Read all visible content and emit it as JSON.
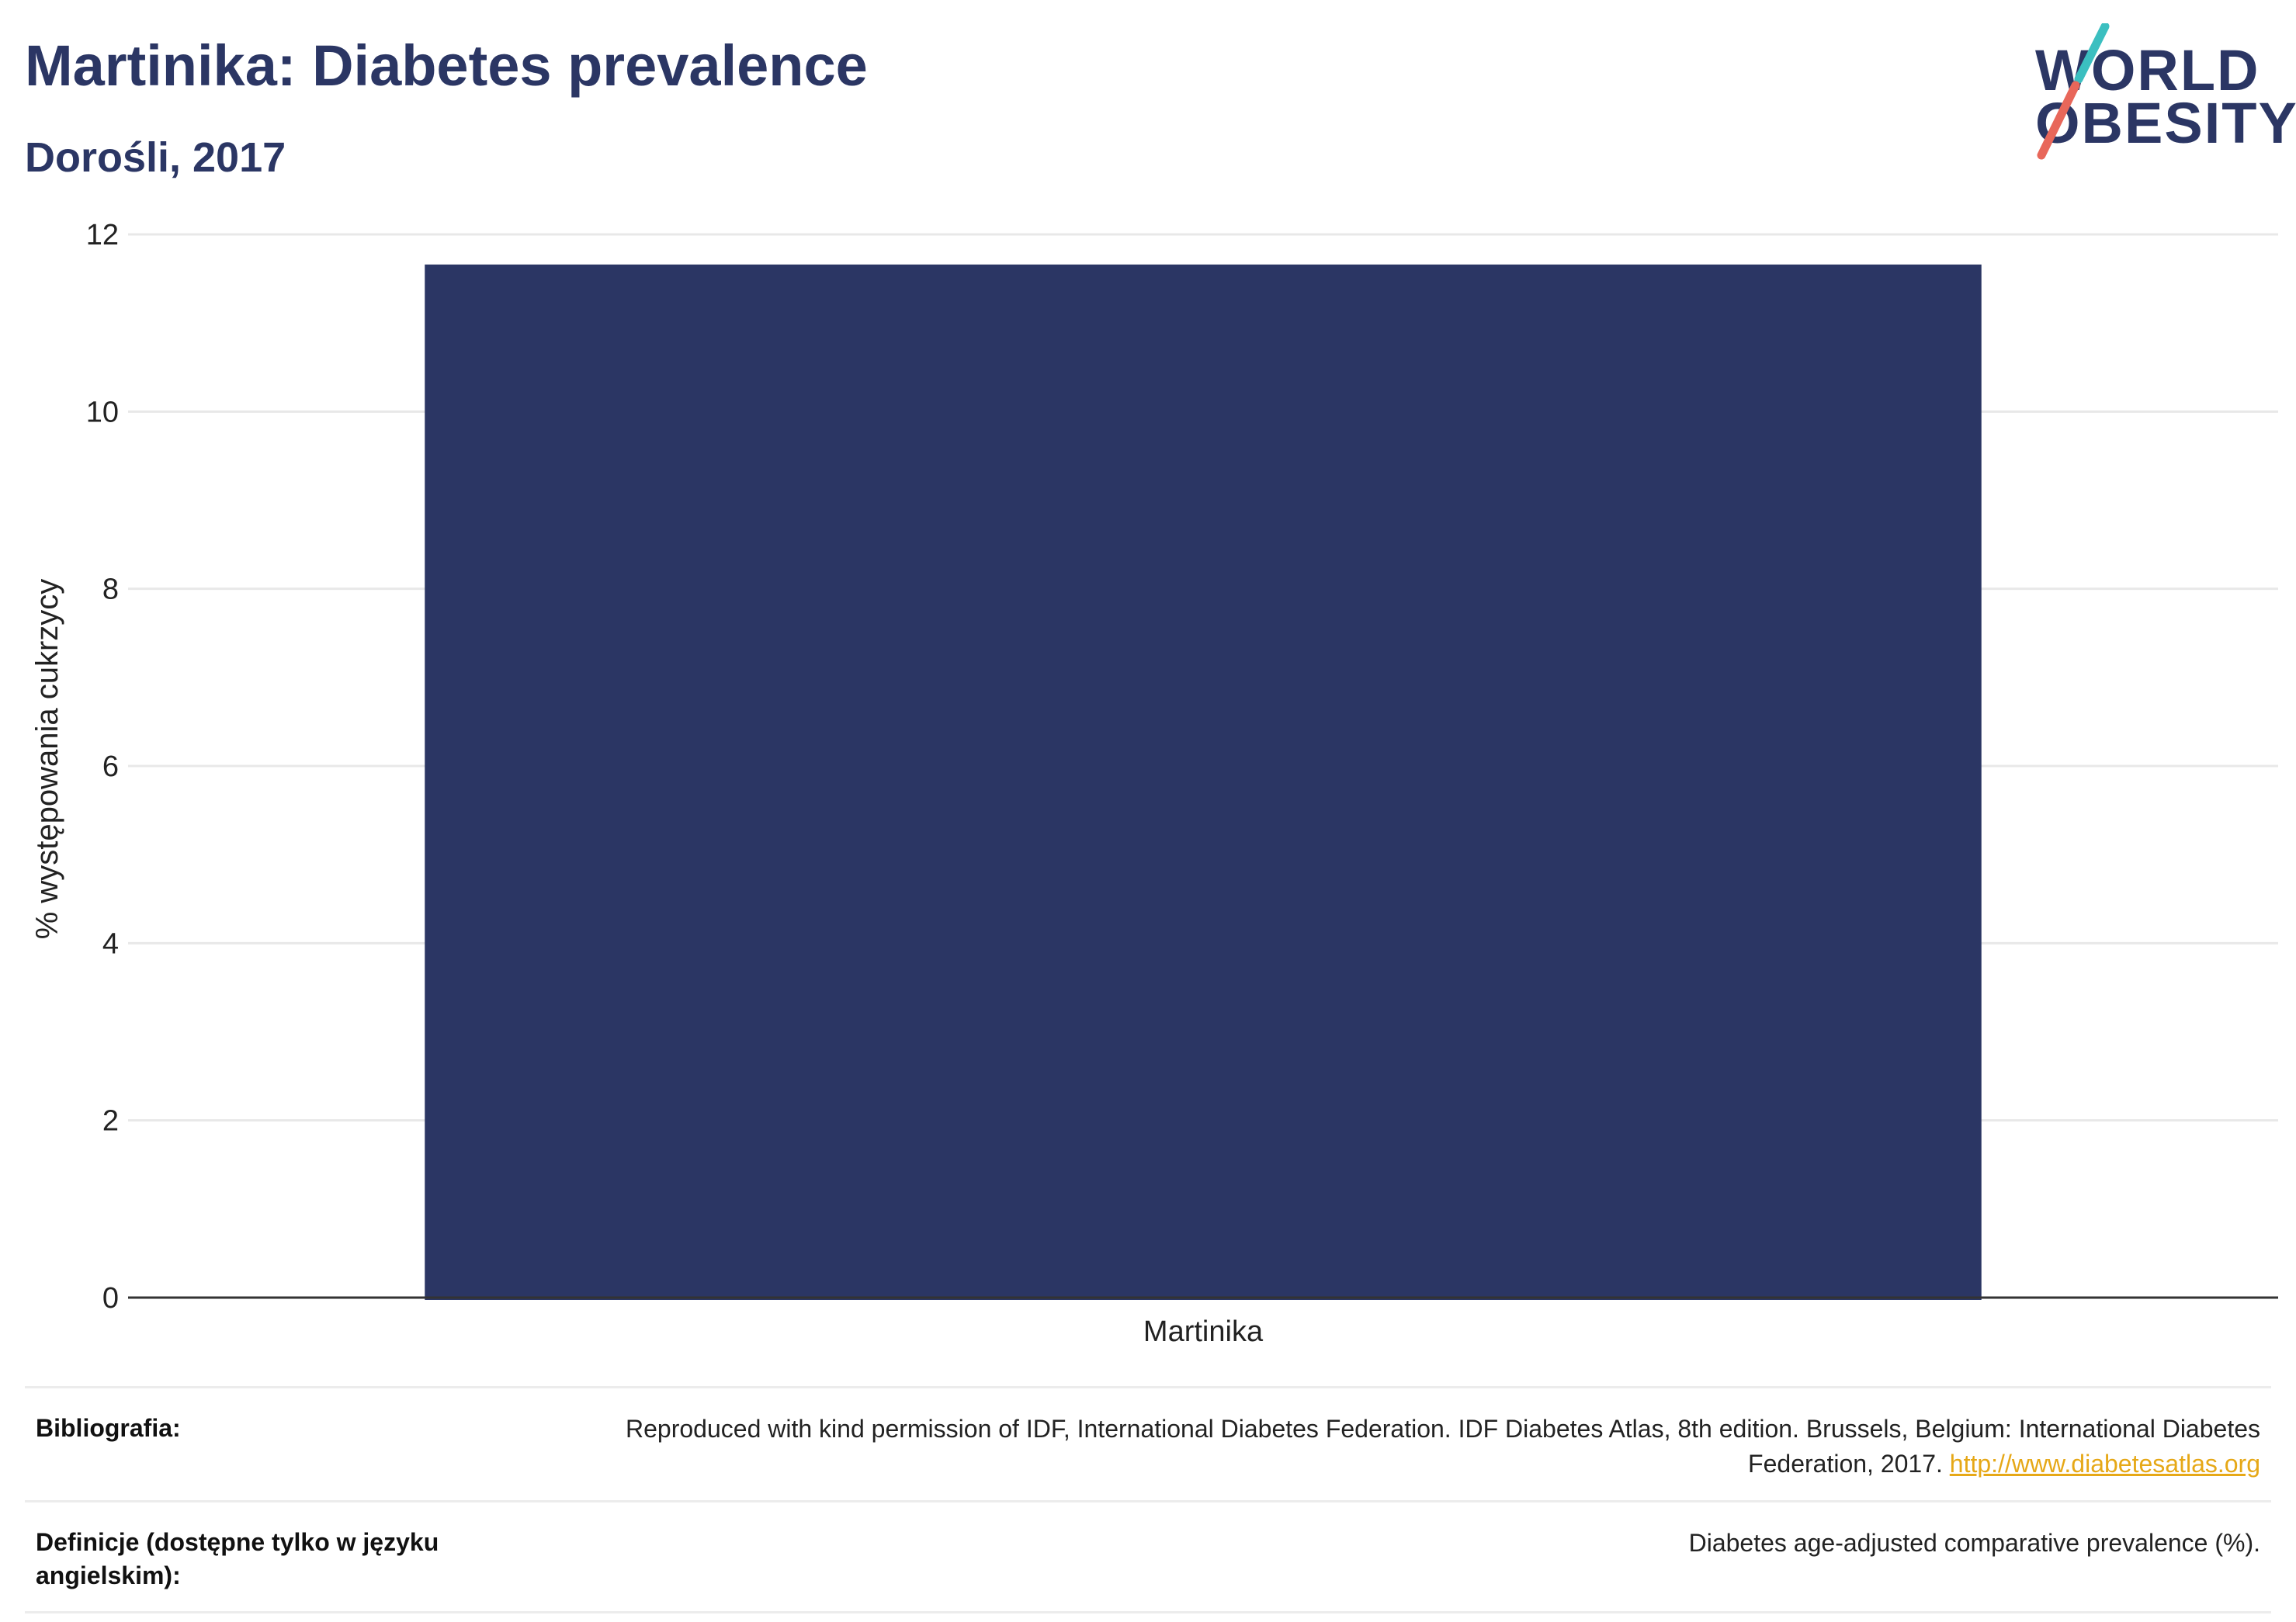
{
  "header": {
    "title": "Martinika: Diabetes prevalence",
    "subtitle": "Dorośli, 2017"
  },
  "logo": {
    "line1": "WORLD",
    "line2": "OBESITY",
    "slash_colors": [
      "#3bbfc0",
      "#e8675a"
    ]
  },
  "colors": {
    "bar": "#2b3664",
    "title": "#2b3664",
    "link": "#e6a817"
  },
  "chart_data": {
    "type": "bar",
    "categories": [
      "Martinika"
    ],
    "values": [
      11.66
    ],
    "title": "Martinika: Diabetes prevalence",
    "subtitle": "Dorośli, 2017",
    "xlabel": "",
    "ylabel": "% występowania cukrzycy",
    "ylim": [
      0,
      12
    ],
    "yticks": [
      "0",
      "2",
      "4",
      "6",
      "8",
      "10",
      "12"
    ],
    "grid": true,
    "legend": "none"
  },
  "info_table": {
    "bibliography_label": "Bibliografia:",
    "bibliography_text": "Reproduced with kind permission of IDF, International Diabetes Federation. IDF Diabetes Atlas, 8th edition. Brussels, Belgium: International Diabetes Federation, 2017.",
    "bibliography_link": "http://www.diabetesatlas.org",
    "definition_label": "Definicje (dostępne tylko w języku angielskim):",
    "definition_text": "Diabetes age-adjusted comparative prevalence (%)."
  }
}
